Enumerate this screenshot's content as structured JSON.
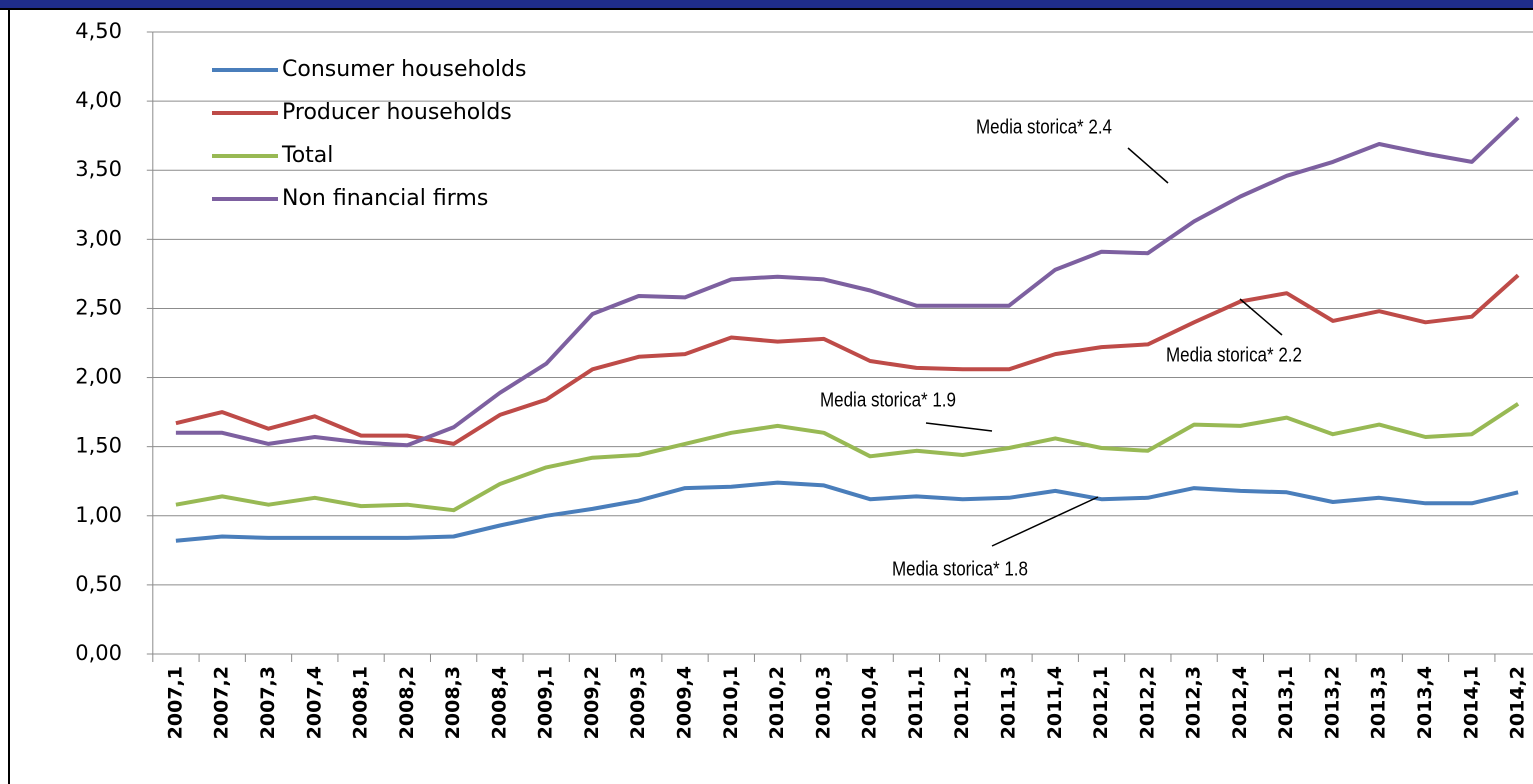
{
  "chart_data": {
    "type": "line",
    "categories": [
      "2007,1",
      "2007,2",
      "2007,3",
      "2007,4",
      "2008,1",
      "2008,2",
      "2008,3",
      "2008,4",
      "2009,1",
      "2009,2",
      "2009,3",
      "2009,4",
      "2010,1",
      "2010,2",
      "2010,3",
      "2010,4",
      "2011,1",
      "2011,2",
      "2011,3",
      "2011,4",
      "2012,1",
      "2012,2",
      "2012,3",
      "2012,4",
      "2013,1",
      "2013,2",
      "2013,3",
      "2013,4",
      "2014,1",
      "2014,2"
    ],
    "series": [
      {
        "name": "Consumer households",
        "color": "#4a7ebb",
        "values": [
          0.82,
          0.85,
          0.84,
          0.84,
          0.84,
          0.84,
          0.85,
          0.93,
          1.0,
          1.05,
          1.11,
          1.2,
          1.21,
          1.24,
          1.22,
          1.12,
          1.14,
          1.12,
          1.13,
          1.18,
          1.12,
          1.13,
          1.2,
          1.18,
          1.17,
          1.1,
          1.13,
          1.09,
          1.09,
          1.17
        ]
      },
      {
        "name": "Producer households",
        "color": "#be4b48",
        "values": [
          1.67,
          1.75,
          1.63,
          1.72,
          1.58,
          1.58,
          1.52,
          1.73,
          1.84,
          2.06,
          2.15,
          2.17,
          2.29,
          2.26,
          2.28,
          2.12,
          2.07,
          2.06,
          2.06,
          2.17,
          2.22,
          2.24,
          2.4,
          2.55,
          2.61,
          2.41,
          2.48,
          2.4,
          2.44,
          2.74
        ]
      },
      {
        "name": "Total",
        "color": "#98b954",
        "values": [
          1.08,
          1.14,
          1.08,
          1.13,
          1.07,
          1.08,
          1.04,
          1.23,
          1.35,
          1.42,
          1.44,
          1.52,
          1.6,
          1.65,
          1.6,
          1.43,
          1.47,
          1.44,
          1.49,
          1.56,
          1.49,
          1.47,
          1.66,
          1.65,
          1.71,
          1.59,
          1.66,
          1.57,
          1.59,
          1.81
        ]
      },
      {
        "name": "Non financial firms",
        "color": "#7d60a0",
        "values": [
          1.6,
          1.6,
          1.52,
          1.57,
          1.53,
          1.51,
          1.64,
          1.89,
          2.1,
          2.46,
          2.59,
          2.58,
          2.71,
          2.73,
          2.71,
          2.63,
          2.52,
          2.52,
          2.52,
          2.78,
          2.91,
          2.9,
          3.13,
          3.31,
          3.46,
          3.56,
          3.69,
          3.62,
          3.56,
          3.88
        ]
      }
    ],
    "ylim": [
      0,
      4.5
    ],
    "yticks": [
      {
        "value": 0,
        "label": "0,00"
      },
      {
        "value": 0.5,
        "label": "0,50"
      },
      {
        "value": 1,
        "label": "1,00"
      },
      {
        "value": 1.5,
        "label": "1,50"
      },
      {
        "value": 2,
        "label": "2,00"
      },
      {
        "value": 2.5,
        "label": "2,50"
      },
      {
        "value": 3,
        "label": "3,00"
      },
      {
        "value": 3.5,
        "label": "3,50"
      },
      {
        "value": 4,
        "label": "4,00"
      },
      {
        "value": 4.5,
        "label": "4,50"
      }
    ],
    "grid": true,
    "legend": "top-left",
    "annotations": [
      "Media storica* 2.4",
      "Media storica* 2.2",
      "Media storica* 1.9",
      "Media storica* 1.8"
    ]
  }
}
